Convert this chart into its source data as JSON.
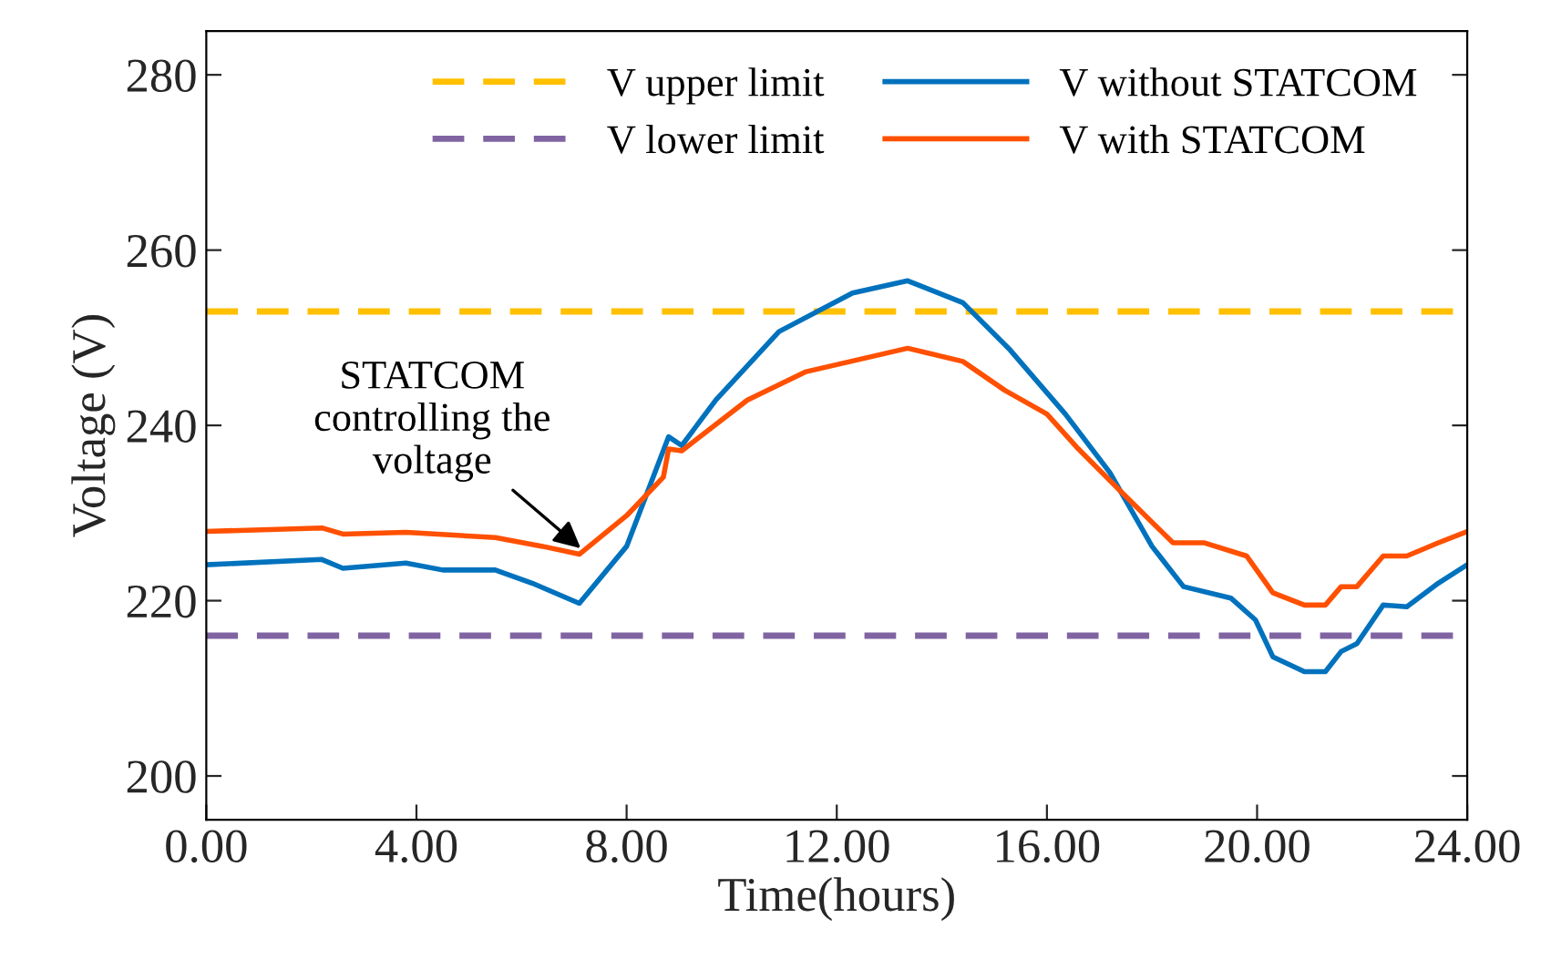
{
  "chart_data": {
    "type": "line",
    "xlabel": "Time(hours)",
    "ylabel": "Voltage (V)",
    "xlim": [
      0,
      24
    ],
    "ylim": [
      195,
      285
    ],
    "xticks": [
      {
        "value": 0,
        "label": "0.00"
      },
      {
        "value": 4,
        "label": "4.00"
      },
      {
        "value": 8,
        "label": "8.00"
      },
      {
        "value": 12,
        "label": "12.00"
      },
      {
        "value": 16,
        "label": "16.00"
      },
      {
        "value": 20,
        "label": "20.00"
      },
      {
        "value": 24,
        "label": "24.00"
      }
    ],
    "yticks": [
      200,
      220,
      240,
      260,
      280
    ],
    "grid": false,
    "legend": "top",
    "line_style": "solid",
    "marker": "none",
    "series": [
      {
        "name": "V without STATCOM",
        "color": "#0072bd",
        "x": [
          0,
          2.2,
          2.6,
          3.8,
          4.5,
          5.5,
          6.2,
          7.1,
          8.0,
          8.8,
          9.05,
          9.7,
          10.9,
          12.3,
          13.35,
          14.4,
          15.3,
          16.35,
          17.2,
          18.0,
          18.6,
          19.5,
          19.97,
          20.3,
          20.9,
          21.3,
          21.6,
          21.9,
          22.4,
          22.85,
          23.45,
          24
        ],
        "values": [
          224.1,
          224.7,
          223.7,
          224.3,
          223.5,
          223.5,
          222,
          219.7,
          226.2,
          238.7,
          237.7,
          242.9,
          250.7,
          255.1,
          256.5,
          254,
          248.6,
          241.3,
          234.6,
          226.2,
          221.6,
          220.3,
          217.8,
          213.6,
          211.9,
          211.9,
          214.2,
          215.1,
          219.5,
          219.3,
          222,
          224.1
        ]
      },
      {
        "name": "V with STATCOM",
        "color": "#ff5000",
        "x": [
          0,
          2.2,
          2.6,
          3.8,
          5.5,
          6.4,
          7.1,
          8.0,
          8.7,
          8.8,
          9.05,
          10.3,
          11.4,
          13.35,
          14.4,
          15.2,
          16.0,
          16.6,
          17.4,
          18.4,
          19.0,
          19.8,
          20.3,
          20.9,
          21.3,
          21.6,
          21.9,
          22.4,
          22.85,
          23.45,
          24
        ],
        "values": [
          227.9,
          228.3,
          227.6,
          227.8,
          227.2,
          226.2,
          225.3,
          229.7,
          234.1,
          237.3,
          237.1,
          242.9,
          246.1,
          248.8,
          247.3,
          244,
          241.3,
          237.3,
          232.5,
          226.6,
          226.6,
          225.1,
          220.9,
          219.5,
          219.5,
          221.6,
          221.6,
          225.1,
          225.1,
          226.6,
          227.9
        ]
      }
    ],
    "ref_lines": [
      {
        "axis": "y",
        "value": 253,
        "label": "V upper limit",
        "color": "#ffc000",
        "line_style": "dashed"
      },
      {
        "axis": "y",
        "value": 216,
        "label": "V lower limit",
        "color": "#8064a2",
        "line_style": "dashed"
      }
    ],
    "annotations": [
      {
        "text": "STATCOM\ncontrolling the\nvoltage",
        "x": 7.2,
        "y": 225.6
      }
    ]
  }
}
